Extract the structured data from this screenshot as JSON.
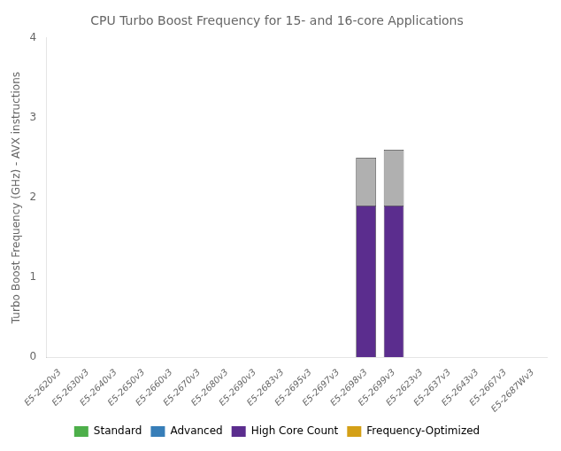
{
  "chart_data": {
    "type": "bar",
    "title": "CPU Turbo Boost Frequency for 15- and 16-core Applications",
    "y_label": "Turbo Boost Frequency (GHz) - AVX instructions",
    "categories": [
      "E5-2620v3",
      "E5-2630v3",
      "E5-2640v3",
      "E5-2650v3",
      "E5-2660v3",
      "E5-2670v3",
      "E5-2680v3",
      "E5-2690v3",
      "E5-2683v3",
      "E5-2695v3",
      "E5-2697v3",
      "E5-2698v3",
      "E5-2699v3",
      "E5-2623v3",
      "E5-2637v3",
      "E5-2643v3",
      "E5-2667v3",
      "E5-2687Wv3"
    ],
    "series": [
      {
        "color": "#5b2d8e",
        "values": [
          0,
          0,
          0,
          0,
          0,
          0,
          0,
          0,
          0,
          0,
          0,
          1.9,
          1.9,
          0,
          0,
          0,
          0,
          0
        ]
      },
      {
        "color": "#b0b0b0",
        "values": [
          0,
          0,
          0,
          0,
          0,
          0,
          0,
          0,
          0,
          0,
          0,
          0.6,
          0.7,
          0,
          0,
          0,
          0,
          0
        ]
      }
    ],
    "legend_entries": [
      {
        "name": "Standard",
        "color": "#4daf4a"
      },
      {
        "name": "Advanced",
        "color": "#377eb8"
      },
      {
        "name": "High Core Count",
        "color": "#5b2d8e"
      },
      {
        "name": "Frequency-Optimized",
        "color": "#d4a017"
      }
    ],
    "stacked": true,
    "ylim": [
      0,
      4
    ],
    "yticks": [
      0,
      1,
      2,
      3,
      4
    ],
    "grid": false,
    "legend": "bottom"
  }
}
